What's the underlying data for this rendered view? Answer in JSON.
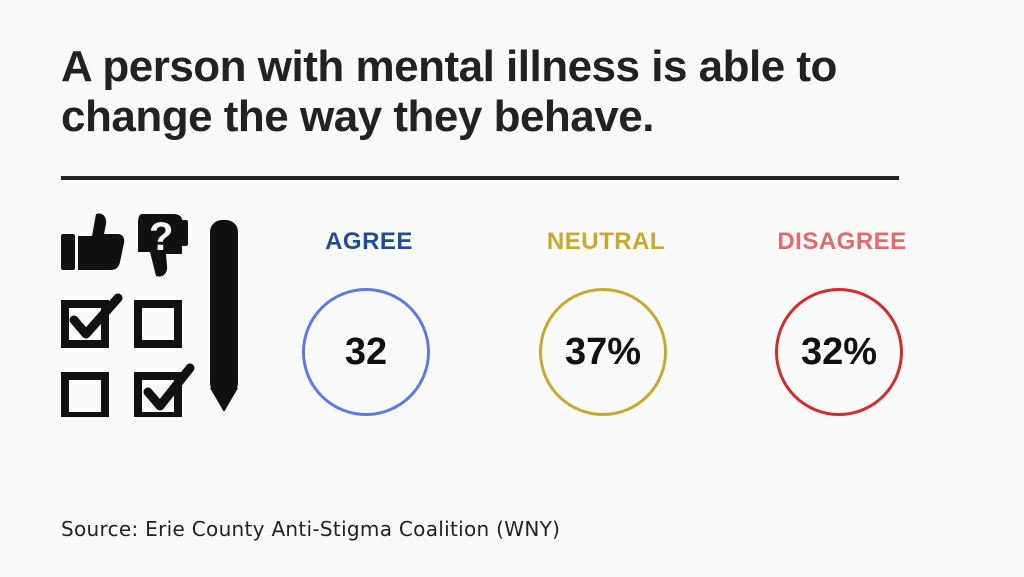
{
  "title": "A person with mental illness is able to change the way they behave.",
  "stats": [
    {
      "label": "AGREE",
      "value": "32",
      "color": "#1f4e96",
      "circle_color": "#5b7be0"
    },
    {
      "label": "NEUTRAL",
      "value": "37%",
      "color": "#c9a92c",
      "circle_color": "#c9a92c"
    },
    {
      "label": "DISAGREE",
      "value": "32%",
      "color": "#e26b6b",
      "circle_color": "#d42a2a"
    }
  ],
  "source": "Source: Erie County Anti-Stigma Coalition (WNY)",
  "icon": "survey-icon",
  "colors": {
    "background": "#fafafa",
    "text": "#222222"
  }
}
